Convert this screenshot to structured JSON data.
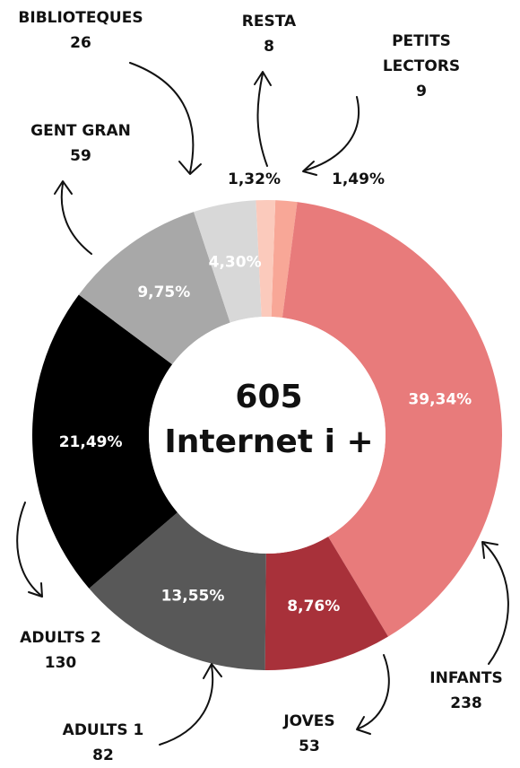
{
  "chart_data": {
    "type": "pie",
    "variant": "donut",
    "center": {
      "total": "605",
      "label": "Internet i +"
    },
    "slices": [
      {
        "key": "petits_lectors",
        "name": "PETITS LECTORS",
        "count": "9",
        "percent": 1.49,
        "percent_label": "1,49%",
        "color": "#f8a797"
      },
      {
        "key": "infants",
        "name": "INFANTS",
        "count": "238",
        "percent": 39.34,
        "percent_label": "39,34%",
        "color": "#e87b7b"
      },
      {
        "key": "joves",
        "name": "JOVES",
        "count": "53",
        "percent": 8.76,
        "percent_label": "8,76%",
        "color": "#a8313a"
      },
      {
        "key": "adults1",
        "name": "ADULTS 1",
        "count": "82",
        "percent": 13.55,
        "percent_label": "13,55%",
        "color": "#585858"
      },
      {
        "key": "adults2",
        "name": "ADULTS 2",
        "count": "130",
        "percent": 21.49,
        "percent_label": "21,49%",
        "color": "#000000"
      },
      {
        "key": "gent_gran",
        "name": "GENT GRAN",
        "count": "59",
        "percent": 9.75,
        "percent_label": "9,75%",
        "color": "#a8a8a8"
      },
      {
        "key": "biblioteques",
        "name": "BIBLIOTEQUES",
        "count": "26",
        "percent": 4.3,
        "percent_label": "4,30%",
        "color": "#d8d8d8"
      },
      {
        "key": "resta",
        "name": "RESTA",
        "count": "8",
        "percent": 1.32,
        "percent_label": "1,32%",
        "color": "#fbcabc"
      }
    ]
  }
}
